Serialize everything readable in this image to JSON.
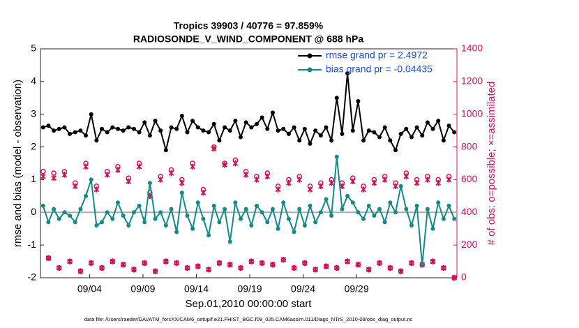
{
  "chart_data": {
    "type": "line",
    "title": "Tropics 39903 / 40776 = 97.859%",
    "subtitle": "RADIOSONDE_V_WIND_COMPONENT @ 688 hPa",
    "x_label": "Sep.01,2010 00:00:00 start",
    "y_label": "rmse and bias (model - observation)",
    "y2_label": "# of obs: o=possible; ×=assimilated",
    "footnote": "data file: /Users/raeder/DAI/ATM_forcXX/CAM6_setup/f.e21.FHIST_BGC.f09_025.CAM6assim.011/Diags_NTrS_2010-09/obs_diag_output.nc",
    "legend": "upper right",
    "xlim": [
      0,
      39
    ],
    "xticks": [
      {
        "value": 4.6,
        "label": "09/04"
      },
      {
        "value": 9.6,
        "label": "09/09"
      },
      {
        "value": 14.6,
        "label": "09/14"
      },
      {
        "value": 19.6,
        "label": "09/19"
      },
      {
        "value": 24.6,
        "label": "09/24"
      },
      {
        "value": 29.6,
        "label": "09/29"
      }
    ],
    "ylim": [
      -2,
      5
    ],
    "yticks": [
      -2,
      -1,
      0,
      1,
      2,
      3,
      4,
      5
    ],
    "y2lim": [
      0,
      1400
    ],
    "y2ticks": [
      0,
      200,
      400,
      600,
      800,
      1000,
      1200,
      1400
    ],
    "x": [
      0.25,
      0.75,
      1.25,
      1.75,
      2.25,
      2.75,
      3.25,
      3.75,
      4.25,
      4.75,
      5.25,
      5.75,
      6.25,
      6.75,
      7.25,
      7.75,
      8.25,
      8.75,
      9.25,
      9.75,
      10.25,
      10.75,
      11.25,
      11.75,
      12.25,
      12.75,
      13.25,
      13.75,
      14.25,
      14.75,
      15.25,
      15.75,
      16.25,
      16.75,
      17.25,
      17.75,
      18.25,
      18.75,
      19.25,
      19.75,
      20.25,
      20.75,
      21.25,
      21.75,
      22.25,
      22.75,
      23.25,
      23.75,
      24.25,
      24.75,
      25.25,
      25.75,
      26.25,
      26.75,
      27.25,
      27.75,
      28.25,
      28.75,
      29.25,
      29.75,
      30.25,
      30.75,
      31.25,
      31.75,
      32.25,
      32.75,
      33.25,
      33.75,
      34.25,
      34.75,
      35.25,
      35.75,
      36.25,
      36.75,
      37.25,
      37.75,
      38.25,
      38.75
    ],
    "series": [
      {
        "name": "rmse grand pr = 2.4972",
        "color": "#000000",
        "marker": "dot",
        "line": true,
        "values": [
          2.6,
          2.65,
          2.5,
          2.55,
          2.6,
          2.4,
          2.45,
          2.5,
          2.35,
          3.0,
          2.2,
          2.55,
          2.45,
          2.6,
          2.55,
          2.5,
          2.6,
          2.55,
          2.45,
          2.75,
          2.35,
          2.8,
          2.5,
          1.9,
          2.6,
          2.55,
          2.95,
          2.45,
          2.8,
          2.6,
          2.5,
          2.45,
          2.7,
          2.2,
          2.6,
          2.5,
          2.8,
          2.3,
          2.75,
          2.6,
          2.7,
          2.9,
          2.55,
          3.05,
          2.5,
          2.55,
          2.4,
          2.6,
          2.2,
          2.55,
          2.1,
          2.5,
          2.35,
          2.6,
          2.2,
          3.5,
          2.4,
          4.25,
          2.5,
          3.4,
          2.2,
          2.5,
          2.45,
          2.3,
          2.6,
          2.2,
          1.9,
          2.4,
          2.55,
          2.3,
          2.6,
          2.35,
          2.75,
          2.55,
          2.8,
          2.2,
          2.65,
          2.45
        ]
      },
      {
        "name": "bias grand pr = -0.04435",
        "color": "#138a8a",
        "marker": "dot",
        "line": true,
        "values": [
          0.2,
          -0.3,
          0.1,
          -0.2,
          0.0,
          -0.1,
          -0.3,
          0.1,
          0.5,
          1.0,
          -0.4,
          -0.3,
          0.0,
          -0.2,
          0.3,
          -0.1,
          -0.4,
          0.0,
          0.2,
          -0.3,
          0.9,
          -0.2,
          0.0,
          -0.4,
          0.1,
          -0.6,
          0.6,
          -0.1,
          -0.5,
          0.3,
          -0.2,
          -0.7,
          0.2,
          -0.3,
          0.1,
          -0.9,
          0.3,
          -0.2,
          0.1,
          -0.4,
          0.2,
          0.0,
          -0.3,
          0.1,
          -0.5,
          0.3,
          -0.2,
          -0.6,
          0.1,
          -0.4,
          0.2,
          -0.3,
          0.0,
          0.4,
          -0.1,
          1.7,
          0.1,
          0.5,
          0.3,
          0.0,
          -0.2,
          0.2,
          -0.1,
          0.1,
          -0.3,
          0.3,
          0.0,
          0.8,
          0.1,
          -0.4,
          0.2,
          -1.6,
          0.1,
          -0.5,
          0.3,
          -0.2,
          0.2,
          -0.2
        ]
      },
      {
        "color": "#d0105a",
        "marker": "circle",
        "line": false,
        "axis": "y2",
        "values": [
          650,
          120,
          640,
          60,
          650,
          100,
          580,
          40,
          700,
          90,
          560,
          60,
          650,
          100,
          680,
          80,
          610,
          50,
          700,
          90,
          520,
          40,
          620,
          100,
          660,
          90,
          600,
          60,
          700,
          70,
          540,
          50,
          800,
          90,
          700,
          80,
          720,
          60,
          650,
          100,
          620,
          90,
          640,
          80,
          560,
          110,
          600,
          60,
          620,
          90,
          560,
          50,
          580,
          70,
          600,
          60,
          580,
          100,
          610,
          80,
          560,
          50,
          600,
          90,
          620,
          60,
          580,
          40,
          640,
          90,
          600,
          80,
          620,
          100,
          600,
          60,
          620,
          0
        ]
      },
      {
        "color": "#d0105a",
        "marker": "cross",
        "line": false,
        "axis": "y2",
        "values": [
          620,
          120,
          610,
          60,
          630,
          100,
          560,
          40,
          680,
          90,
          540,
          60,
          630,
          100,
          660,
          80,
          590,
          50,
          680,
          90,
          500,
          40,
          600,
          100,
          640,
          90,
          580,
          60,
          680,
          70,
          520,
          50,
          790,
          90,
          690,
          80,
          700,
          60,
          630,
          100,
          600,
          90,
          620,
          80,
          540,
          110,
          580,
          60,
          600,
          90,
          540,
          50,
          560,
          70,
          580,
          60,
          560,
          100,
          590,
          80,
          540,
          50,
          580,
          90,
          600,
          60,
          560,
          40,
          620,
          90,
          580,
          80,
          600,
          100,
          580,
          60,
          600,
          0
        ]
      }
    ]
  }
}
